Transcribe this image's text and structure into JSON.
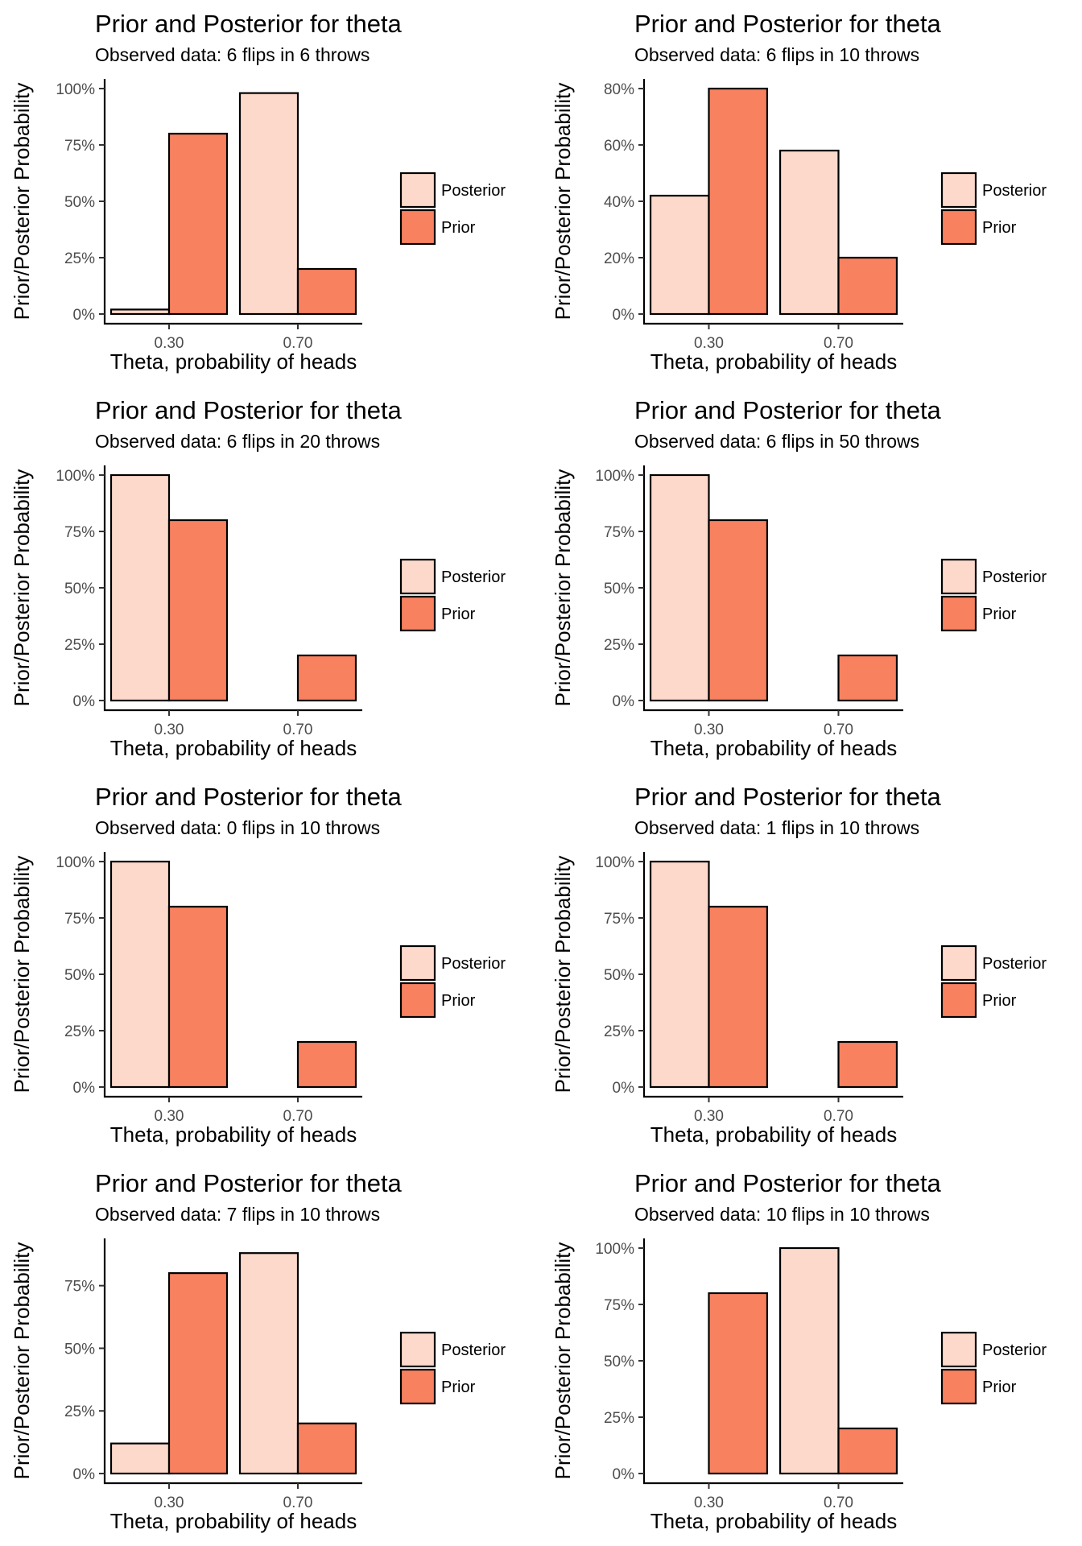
{
  "colors": {
    "Posterior": "#fcd9cb",
    "Prior": "#f8815f",
    "outline": "#000000"
  },
  "chart_data": [
    {
      "type": "bar",
      "title": "Prior and Posterior for theta",
      "subtitle": "Observed data: 6 flips in 6 throws",
      "xlabel": "Theta, probability of heads",
      "ylabel": "Prior/Posterior Probability",
      "categories": [
        "0.30",
        "0.70"
      ],
      "series": [
        {
          "name": "Posterior",
          "values": [
            0.02,
            0.98
          ]
        },
        {
          "name": "Prior",
          "values": [
            0.8,
            0.2
          ]
        }
      ],
      "ylim": [
        0,
        1.0
      ],
      "yticks": [
        0,
        0.25,
        0.5,
        0.75,
        1.0
      ],
      "ytick_labels": [
        "0%",
        "25%",
        "50%",
        "75%",
        "100%"
      ],
      "legend_position": "right",
      "grid": false
    },
    {
      "type": "bar",
      "title": "Prior and Posterior for theta",
      "subtitle": "Observed data: 6 flips in 10 throws",
      "xlabel": "Theta, probability of heads",
      "ylabel": "Prior/Posterior Probability",
      "categories": [
        "0.30",
        "0.70"
      ],
      "series": [
        {
          "name": "Posterior",
          "values": [
            0.42,
            0.58
          ]
        },
        {
          "name": "Prior",
          "values": [
            0.8,
            0.2
          ]
        }
      ],
      "ylim": [
        0,
        0.8
      ],
      "yticks": [
        0,
        0.2,
        0.4,
        0.6,
        0.8
      ],
      "ytick_labels": [
        "0%",
        "20%",
        "40%",
        "60%",
        "80%"
      ],
      "legend_position": "right",
      "grid": false
    },
    {
      "type": "bar",
      "title": "Prior and Posterior for theta",
      "subtitle": "Observed data: 6 flips in 20 throws",
      "xlabel": "Theta, probability of heads",
      "ylabel": "Prior/Posterior Probability",
      "categories": [
        "0.30",
        "0.70"
      ],
      "series": [
        {
          "name": "Posterior",
          "values": [
            1.0,
            0.0
          ]
        },
        {
          "name": "Prior",
          "values": [
            0.8,
            0.2
          ]
        }
      ],
      "ylim": [
        0,
        1.0
      ],
      "yticks": [
        0,
        0.25,
        0.5,
        0.75,
        1.0
      ],
      "ytick_labels": [
        "0%",
        "25%",
        "50%",
        "75%",
        "100%"
      ],
      "legend_position": "right",
      "grid": false
    },
    {
      "type": "bar",
      "title": "Prior and Posterior for theta",
      "subtitle": "Observed data: 6 flips in 50 throws",
      "xlabel": "Theta, probability of heads",
      "ylabel": "Prior/Posterior Probability",
      "categories": [
        "0.30",
        "0.70"
      ],
      "series": [
        {
          "name": "Posterior",
          "values": [
            1.0,
            0.0
          ]
        },
        {
          "name": "Prior",
          "values": [
            0.8,
            0.2
          ]
        }
      ],
      "ylim": [
        0,
        1.0
      ],
      "yticks": [
        0,
        0.25,
        0.5,
        0.75,
        1.0
      ],
      "ytick_labels": [
        "0%",
        "25%",
        "50%",
        "75%",
        "100%"
      ],
      "legend_position": "right",
      "grid": false
    },
    {
      "type": "bar",
      "title": "Prior and Posterior for theta",
      "subtitle": "Observed data: 0 flips in 10 throws",
      "xlabel": "Theta, probability of heads",
      "ylabel": "Prior/Posterior Probability",
      "categories": [
        "0.30",
        "0.70"
      ],
      "series": [
        {
          "name": "Posterior",
          "values": [
            1.0,
            0.0
          ]
        },
        {
          "name": "Prior",
          "values": [
            0.8,
            0.2
          ]
        }
      ],
      "ylim": [
        0,
        1.0
      ],
      "yticks": [
        0,
        0.25,
        0.5,
        0.75,
        1.0
      ],
      "ytick_labels": [
        "0%",
        "25%",
        "50%",
        "75%",
        "100%"
      ],
      "legend_position": "right",
      "grid": false
    },
    {
      "type": "bar",
      "title": "Prior and Posterior for theta",
      "subtitle": "Observed data: 1 flips in 10 throws",
      "xlabel": "Theta, probability of heads",
      "ylabel": "Prior/Posterior Probability",
      "categories": [
        "0.30",
        "0.70"
      ],
      "series": [
        {
          "name": "Posterior",
          "values": [
            1.0,
            0.0
          ]
        },
        {
          "name": "Prior",
          "values": [
            0.8,
            0.2
          ]
        }
      ],
      "ylim": [
        0,
        1.0
      ],
      "yticks": [
        0,
        0.25,
        0.5,
        0.75,
        1.0
      ],
      "ytick_labels": [
        "0%",
        "25%",
        "50%",
        "75%",
        "100%"
      ],
      "legend_position": "right",
      "grid": false
    },
    {
      "type": "bar",
      "title": "Prior and Posterior for theta",
      "subtitle": "Observed data: 7 flips in 10 throws",
      "xlabel": "Theta, probability of heads",
      "ylabel": "Prior/Posterior Probability",
      "categories": [
        "0.30",
        "0.70"
      ],
      "series": [
        {
          "name": "Posterior",
          "values": [
            0.12,
            0.88
          ]
        },
        {
          "name": "Prior",
          "values": [
            0.8,
            0.2
          ]
        }
      ],
      "ylim": [
        0,
        0.9
      ],
      "yticks": [
        0,
        0.25,
        0.5,
        0.75
      ],
      "ytick_labels": [
        "0%",
        "25%",
        "50%",
        "75%"
      ],
      "legend_position": "right",
      "grid": false
    },
    {
      "type": "bar",
      "title": "Prior and Posterior for theta",
      "subtitle": "Observed data: 10 flips in 10 throws",
      "xlabel": "Theta, probability of heads",
      "ylabel": "Prior/Posterior Probability",
      "categories": [
        "0.30",
        "0.70"
      ],
      "series": [
        {
          "name": "Posterior",
          "values": [
            0.0,
            1.0
          ]
        },
        {
          "name": "Prior",
          "values": [
            0.8,
            0.2
          ]
        }
      ],
      "ylim": [
        0,
        1.0
      ],
      "yticks": [
        0,
        0.25,
        0.5,
        0.75,
        1.0
      ],
      "ytick_labels": [
        "0%",
        "25%",
        "50%",
        "75%",
        "100%"
      ],
      "legend_position": "right",
      "grid": false
    }
  ]
}
